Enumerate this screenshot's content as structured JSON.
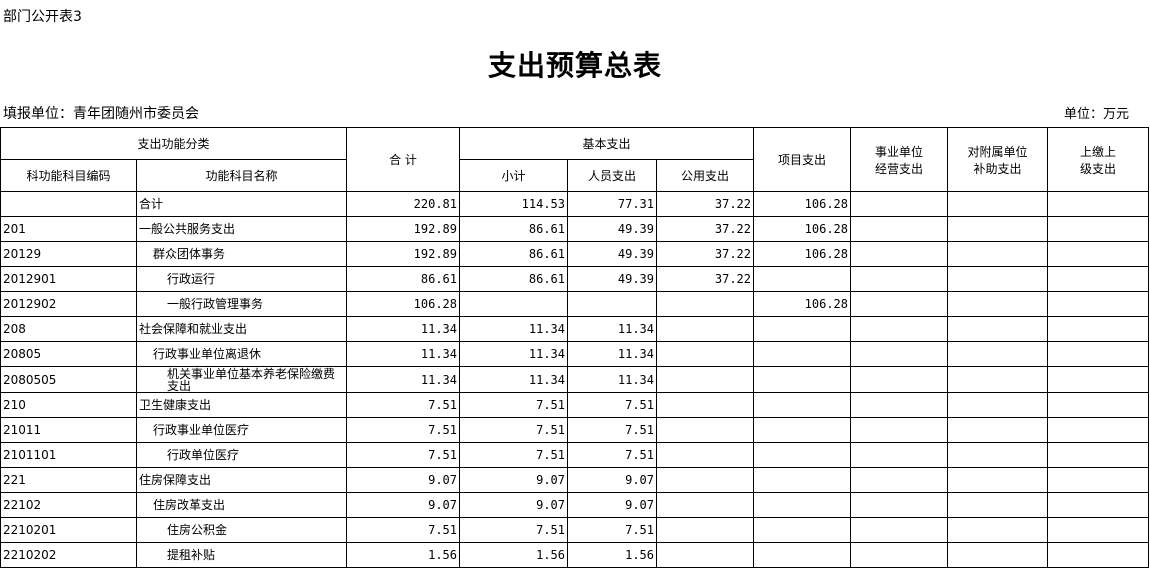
{
  "header": {
    "form_no": "部门公开表3",
    "title": "支出预算总表",
    "unit_filler": "填报单位：青年团随州市委员会",
    "unit": "单位：万元"
  },
  "table": {
    "head": {
      "function_class": "支出功能分类",
      "code": "科功能科目编码",
      "name": "功能科目名称",
      "total": "合  计",
      "basic": "基本支出",
      "basic_subtotal": "小计",
      "personnel": "人员支出",
      "public": "公用支出",
      "project": "项目支出",
      "business": [
        "事业单位",
        "经营支出"
      ],
      "subsidy": [
        "对附属单位",
        "补助支出"
      ],
      "remit": [
        "上缴上",
        "级支出"
      ]
    },
    "rows": [
      {
        "name": "合计",
        "total": "220.81",
        "basic_subtotal": "114.53",
        "personnel": "77.31",
        "public": "37.22",
        "project": "106.28"
      },
      {
        "code": "201",
        "name": "一般公共服务支出",
        "total": "192.89",
        "basic_subtotal": "86.61",
        "personnel": "49.39",
        "public": "37.22",
        "project": "106.28"
      },
      {
        "code": "20129",
        "name": "群众团体事务",
        "total": "192.89",
        "basic_subtotal": "86.61",
        "personnel": "49.39",
        "public": "37.22",
        "project": "106.28"
      },
      {
        "code": "2012901",
        "name": "行政运行",
        "total": "86.61",
        "basic_subtotal": "86.61",
        "personnel": "49.39",
        "public": "37.22"
      },
      {
        "code": "2012902",
        "name": "一般行政管理事务",
        "total": "106.28",
        "project": "106.28"
      },
      {
        "code": "208",
        "name": "社会保障和就业支出",
        "total": "11.34",
        "basic_subtotal": "11.34",
        "personnel": "11.34"
      },
      {
        "code": "20805",
        "name": "行政事业单位离退休",
        "total": "11.34",
        "basic_subtotal": "11.34",
        "personnel": "11.34"
      },
      {
        "code": "2080505",
        "name": "机关事业单位基本养老保险缴费支出",
        "total": "11.34",
        "basic_subtotal": "11.34",
        "personnel": "11.34"
      },
      {
        "code": "210",
        "name": "卫生健康支出",
        "total": "7.51",
        "basic_subtotal": "7.51",
        "personnel": "7.51"
      },
      {
        "code": "21011",
        "name": "行政事业单位医疗",
        "total": "7.51",
        "basic_subtotal": "7.51",
        "personnel": "7.51"
      },
      {
        "code": "2101101",
        "name": "行政单位医疗",
        "total": "7.51",
        "basic_subtotal": "7.51",
        "personnel": "7.51"
      },
      {
        "code": "221",
        "name": "住房保障支出",
        "total": "9.07",
        "basic_subtotal": "9.07",
        "personnel": "9.07"
      },
      {
        "code": "22102",
        "name": "住房改革支出",
        "total": "9.07",
        "basic_subtotal": "9.07",
        "personnel": "9.07"
      },
      {
        "code": "2210201",
        "name": "住房公积金",
        "total": "7.51",
        "basic_subtotal": "7.51",
        "personnel": "7.51"
      },
      {
        "code": "2210202",
        "name": "提租补贴",
        "total": "1.56",
        "basic_subtotal": "1.56",
        "personnel": "1.56"
      }
    ]
  }
}
